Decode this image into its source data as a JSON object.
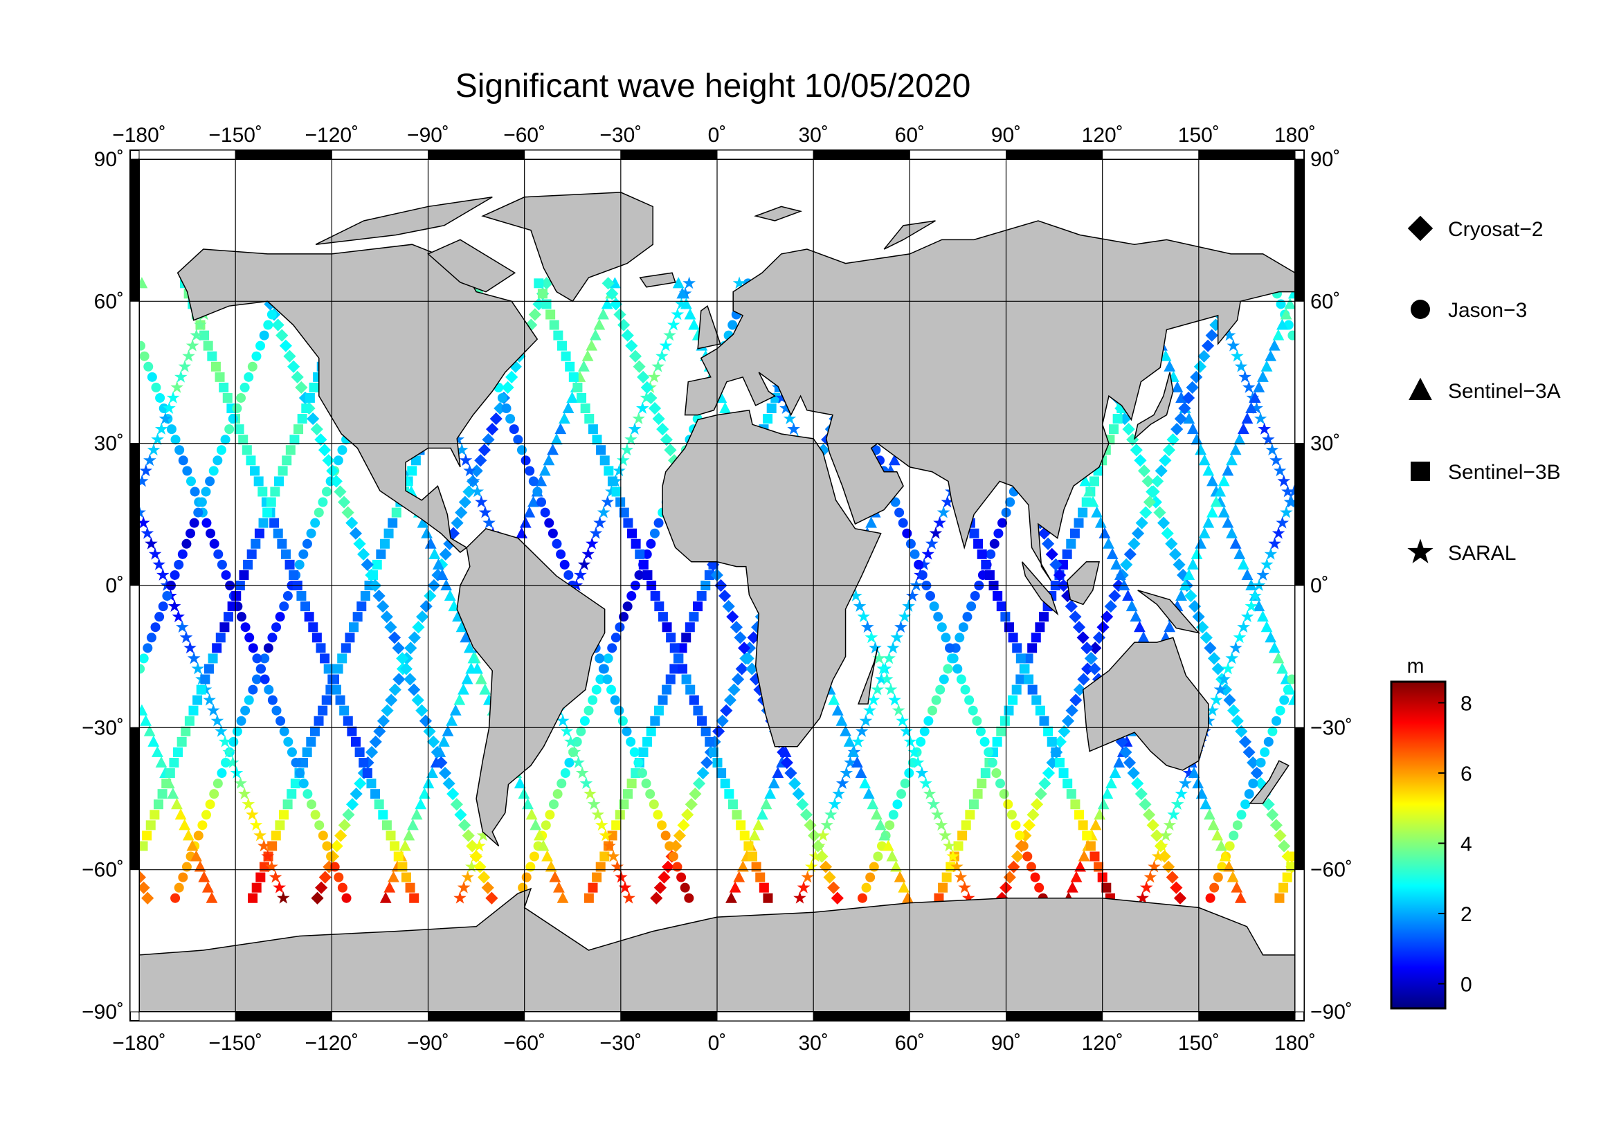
{
  "title": "Significant wave height 10/05/2020",
  "map": {
    "projection": "equirectangular",
    "lon_range": [
      -180,
      180
    ],
    "lat_range": [
      -90,
      90
    ],
    "lon_ticks": [
      -180,
      -150,
      -120,
      -90,
      -60,
      -30,
      0,
      30,
      60,
      90,
      120,
      150,
      180
    ],
    "lat_ticks": [
      90,
      60,
      30,
      0,
      -30,
      -60,
      -90
    ],
    "lon_tick_labels": [
      "−180˚",
      "−150˚",
      "−120˚",
      "−90˚",
      "−60˚",
      "−30˚",
      "0˚",
      "30˚",
      "60˚",
      "90˚",
      "120˚",
      "150˚",
      "180˚"
    ],
    "lat_tick_labels": [
      "90˚",
      "60˚",
      "30˚",
      "0˚",
      "−30˚",
      "−60˚",
      "−90˚"
    ],
    "grid": true,
    "land_color": "#bfbfbf",
    "ocean_color": "#ffffff"
  },
  "legend": {
    "items": [
      {
        "label": "Cryosat−2",
        "marker": "diamond"
      },
      {
        "label": "Jason−3",
        "marker": "circle"
      },
      {
        "label": "Sentinel−3A",
        "marker": "triangle"
      },
      {
        "label": "Sentinel−3B",
        "marker": "square"
      },
      {
        "label": "SARAL",
        "marker": "star"
      }
    ]
  },
  "colorbar": {
    "unit": "m",
    "range": [
      -0.7,
      8.6
    ],
    "ticks": [
      0,
      2,
      4,
      6,
      8
    ],
    "tick_labels": [
      "0",
      "2",
      "4",
      "6",
      "8"
    ],
    "colormap": [
      "#00007f",
      "#0000ff",
      "#007fff",
      "#00ffff",
      "#7fff7f",
      "#ffff00",
      "#ff7f00",
      "#ff0000",
      "#7f0000"
    ]
  }
}
